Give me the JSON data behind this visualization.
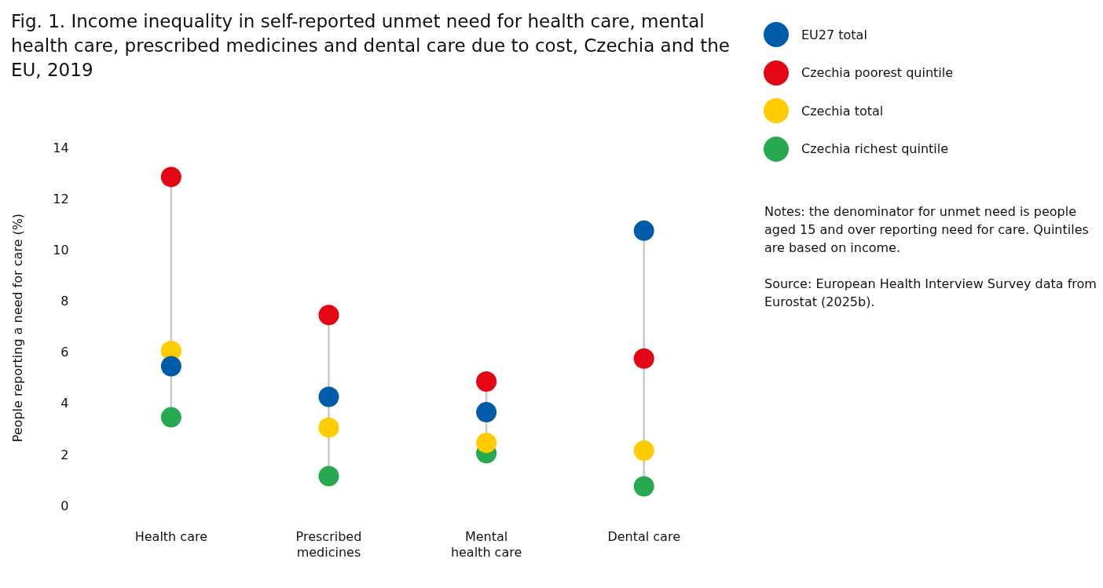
{
  "chart_data": {
    "type": "scatter",
    "title": "Fig. 1. Income inequality in self-reported unmet need for health care, mental health care, prescribed medicines and dental care due to cost, Czechia and the EU, 2019",
    "ylabel": "People reporting a need for care (%)",
    "categories": [
      "Health care",
      "Prescribed medicines",
      "Mental health care",
      "Dental care"
    ],
    "series": [
      {
        "name": "EU27 total",
        "color": "#005ca8",
        "values": [
          5.5,
          4.3,
          3.7,
          10.8
        ]
      },
      {
        "name": "Czechia poorest quintile",
        "color": "#e30613",
        "values": [
          12.9,
          7.5,
          4.9,
          5.8
        ]
      },
      {
        "name": "Czechia total",
        "color": "#ffcc00",
        "values": [
          6.1,
          3.1,
          2.5,
          2.2
        ]
      },
      {
        "name": "Czechia richest quintile",
        "color": "#26a94f",
        "values": [
          3.5,
          1.2,
          2.1,
          0.8
        ]
      }
    ],
    "ylim": [
      0,
      14
    ],
    "yticks": [
      0,
      2,
      4,
      6,
      8,
      10,
      12,
      14
    ],
    "marker": "circle",
    "legend": "top right",
    "annotations": [
      "Notes: the denominator for unmet need is people aged 15 and over reporting need for care. Quintiles are based on income.",
      "Source: European Health Interview Survey data from Eurostat (2025b)."
    ]
  }
}
